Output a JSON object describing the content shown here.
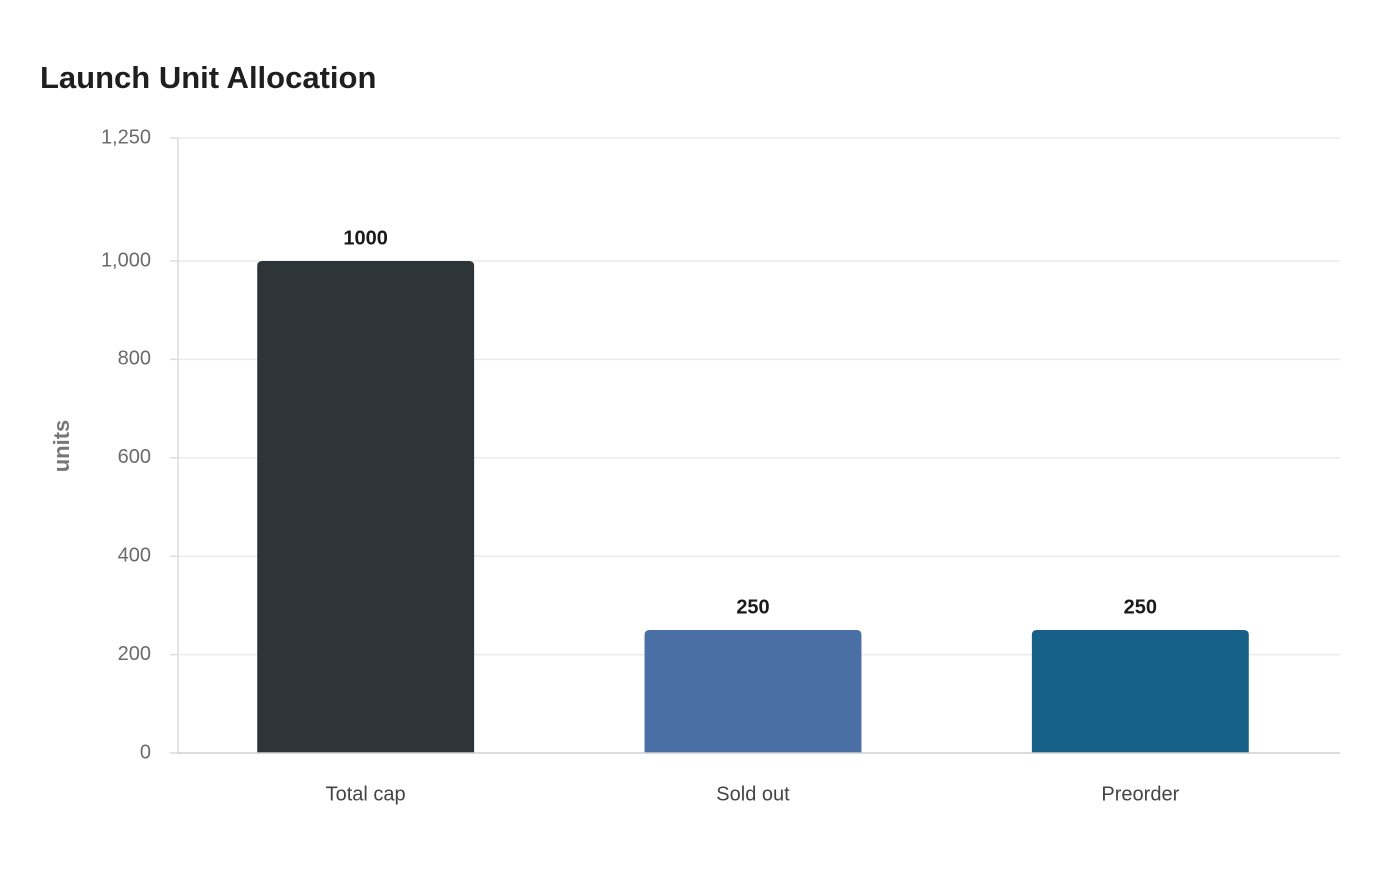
{
  "chart_data": {
    "type": "bar",
    "title": "Launch Unit Allocation",
    "xlabel": "",
    "ylabel": "units",
    "categories": [
      "Total cap",
      "Sold out",
      "Preorder"
    ],
    "values": [
      1000,
      250,
      250
    ],
    "data_labels": [
      "1000",
      "250",
      "250"
    ],
    "bar_colors": [
      "#2e3538",
      "#4a6fa5",
      "#176188"
    ],
    "ylim": [
      0,
      1250
    ],
    "yticks": [
      0,
      200,
      400,
      600,
      800,
      1000,
      1250
    ],
    "ytick_labels": [
      "0",
      "200",
      "400",
      "600",
      "800",
      "1,000",
      "1,250"
    ],
    "grid": true,
    "legend": "none"
  }
}
